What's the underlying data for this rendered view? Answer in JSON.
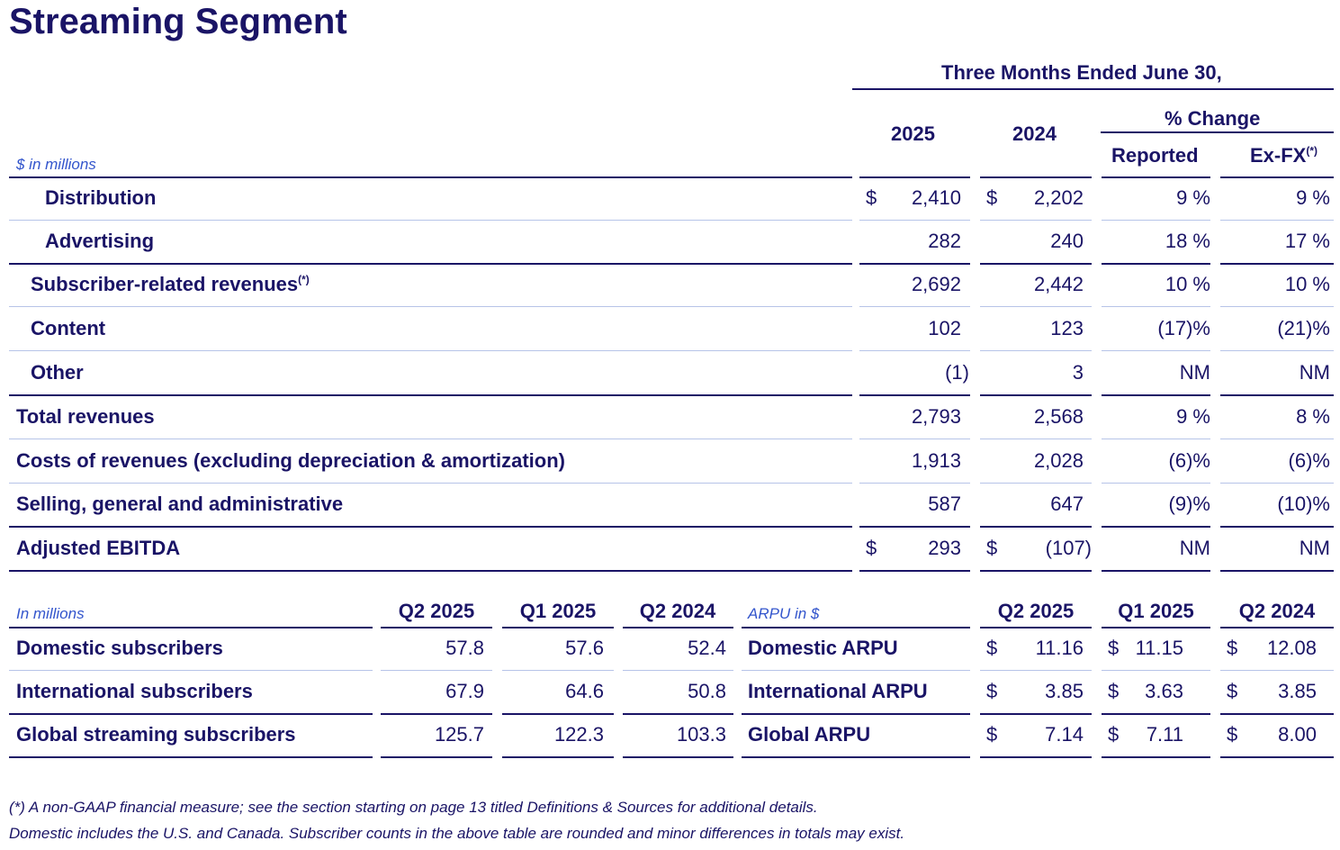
{
  "title": "Streaming Segment",
  "header": {
    "period": "Three Months Ended June 30,",
    "col_2025": "2025",
    "col_2024": "2024",
    "pct_change": "% Change",
    "reported": "Reported",
    "exfx": "Ex-FX",
    "exfx_note": "(*)",
    "units": "$ in millions"
  },
  "rows": [
    {
      "label": "Distribution",
      "sup": "",
      "d1": "$",
      "v2025": "2,410",
      "d2": "$",
      "v2024": "2,202",
      "rep": "9 %",
      "fx": "9 %"
    },
    {
      "label": "Advertising",
      "sup": "",
      "d1": "",
      "v2025": "282",
      "d2": "",
      "v2024": "240",
      "rep": "18 %",
      "fx": "17 %"
    },
    {
      "label": "Subscriber-related revenues",
      "sup": "(*)",
      "d1": "",
      "v2025": "2,692",
      "d2": "",
      "v2024": "2,442",
      "rep": "10 %",
      "fx": "10 %"
    },
    {
      "label": "Content",
      "sup": "",
      "d1": "",
      "v2025": "102",
      "d2": "",
      "v2024": "123",
      "rep": "(17)%",
      "fx": "(21)%"
    },
    {
      "label": "Other",
      "sup": "",
      "d1": "",
      "v2025": "(1)",
      "d2": "",
      "v2024": "3",
      "rep": "NM",
      "fx": "NM"
    },
    {
      "label": "Total revenues",
      "sup": "",
      "d1": "",
      "v2025": "2,793",
      "d2": "",
      "v2024": "2,568",
      "rep": "9 %",
      "fx": "8 %"
    },
    {
      "label": "Costs of revenues (excluding depreciation & amortization)",
      "sup": "",
      "d1": "",
      "v2025": "1,913",
      "d2": "",
      "v2024": "2,028",
      "rep": "(6)%",
      "fx": "(6)%"
    },
    {
      "label": "Selling, general and administrative",
      "sup": "",
      "d1": "",
      "v2025": "587",
      "d2": "",
      "v2024": "647",
      "rep": "(9)%",
      "fx": "(10)%"
    },
    {
      "label": "Adjusted EBITDA",
      "sup": "",
      "d1": "$",
      "v2025": "293",
      "d2": "$",
      "v2024": "(107)",
      "rep": "NM",
      "fx": "NM"
    }
  ],
  "subs": {
    "units": "In millions",
    "cols": [
      "Q2 2025",
      "Q1 2025",
      "Q2 2024"
    ],
    "rows": [
      {
        "label": "Domestic subscribers",
        "v": [
          "57.8",
          "57.6",
          "52.4"
        ]
      },
      {
        "label": "International subscribers",
        "v": [
          "67.9",
          "64.6",
          "50.8"
        ]
      },
      {
        "label": "Global streaming subscribers",
        "v": [
          "125.7",
          "122.3",
          "103.3"
        ]
      }
    ]
  },
  "arpu": {
    "units": "ARPU in $",
    "cols": [
      "Q2 2025",
      "Q1 2025",
      "Q2 2024"
    ],
    "rows": [
      {
        "label": "Domestic ARPU",
        "v": [
          "11.16",
          "11.15",
          "12.08"
        ]
      },
      {
        "label": "International ARPU",
        "v": [
          "3.85",
          "3.63",
          "3.85"
        ]
      },
      {
        "label": "Global ARPU",
        "v": [
          "7.14",
          "7.11",
          "8.00"
        ]
      }
    ],
    "dollar": "$"
  },
  "footnotes": [
    "(*) A non-GAAP financial measure;  see the section starting on page 13 titled Definitions & Sources for additional details.",
    "Domestic includes the U.S. and Canada. Subscriber counts in the above table are rounded and minor differences in totals may exist."
  ]
}
